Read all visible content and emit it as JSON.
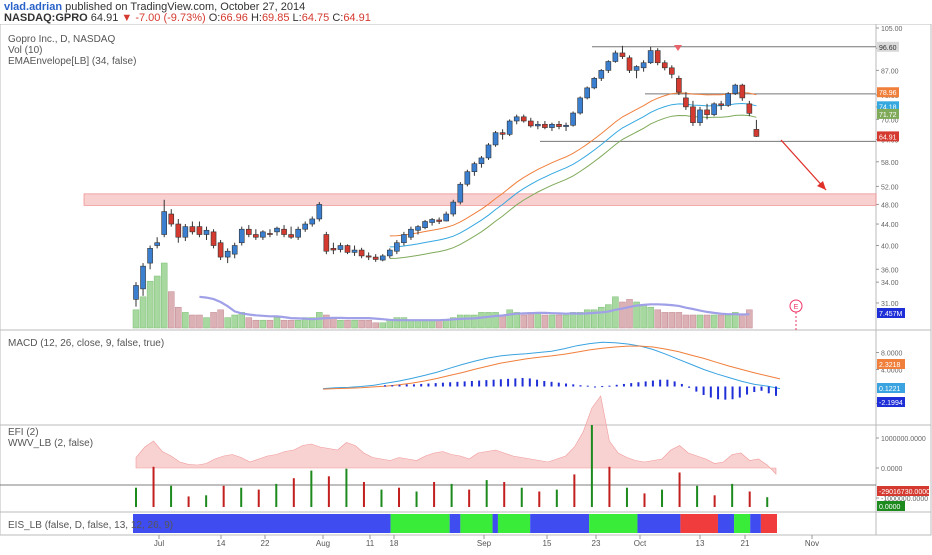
{
  "header": {
    "author": "vlad.adrian",
    "published": "published on TradingView.com, October 27, 2014",
    "symbol": "NASDAQ:GPRO",
    "last": "64.91",
    "change_arrow": "▼",
    "change": "-7.00 (-9.73%)",
    "o_label": "O:",
    "o": "66.96",
    "h_label": "H:",
    "h": "69.85",
    "l_label": "L:",
    "l": "64.75",
    "c_label": "C:",
    "c": "64.91"
  },
  "main_pane": {
    "title": "Gopro Inc., D, NASDAQ",
    "vol_label": "Vol (10)",
    "env_label": "EMAEnvelope[LB] (34, false)",
    "earnings_marker": "E",
    "volume_badge": "7.457M"
  },
  "macd_pane": {
    "label": "MACD (12, 26, close, 9, false, true)"
  },
  "efi_pane": {
    "label1": "EFI (2)",
    "label2": "WWV_LB (2, false)"
  },
  "eis_pane": {
    "label": "EIS_LB (false, D, false, 13, 12, 26, 9)"
  },
  "colors": {
    "up": "#3b7fd1",
    "down": "#d43a2f",
    "ema_upper": "#f07f3c",
    "ema_mid": "#35a8e0",
    "ema_lower": "#7faa5a",
    "zone": "#f4a9a9",
    "green": "#39ec39",
    "blue": "#3f4df0",
    "red": "#f03c3c"
  },
  "chart_data": [
    {
      "type": "candlestick",
      "title": "Gopro Inc., D, NASDAQ",
      "x_tick_labels": [
        "Jul",
        "14",
        "22",
        "Aug",
        "11",
        "18",
        "Sep",
        "15",
        "23",
        "Oct",
        "13",
        "21",
        "Nov"
      ],
      "y_tick_labels": [
        "31.00",
        "34.00",
        "36.00",
        "40.00",
        "44.00",
        "48.00",
        "52.00",
        "58.00",
        "64.00",
        "70.00",
        "74.00",
        "78.00",
        "87.00",
        "96.00",
        "105.00"
      ],
      "y_scale": "log",
      "ylim": [
        29,
        105
      ],
      "price_badges": [
        {
          "text": "96.60",
          "value": 96.6,
          "color": "#d9d9d9",
          "text_color": "#333"
        },
        {
          "text": "78.96",
          "value": 78.96,
          "color": "#f07f3c",
          "text_color": "#fff"
        },
        {
          "text": "74.18",
          "value": 74.18,
          "color": "#35a8e0",
          "text_color": "#fff"
        },
        {
          "text": "71.72",
          "value": 71.72,
          "color": "#7faa5a",
          "text_color": "#fff"
        },
        {
          "text": "64.91",
          "value": 64.91,
          "color": "#d43a2f",
          "text_color": "#fff"
        }
      ],
      "candles": [
        {
          "o": 31.5,
          "h": 34,
          "l": 30.5,
          "c": 33.5
        },
        {
          "o": 33,
          "h": 37,
          "l": 32,
          "c": 36.5
        },
        {
          "o": 37,
          "h": 40,
          "l": 36,
          "c": 39.5
        },
        {
          "o": 40,
          "h": 41.5,
          "l": 39.5,
          "c": 40.5
        },
        {
          "o": 42,
          "h": 49,
          "l": 41.5,
          "c": 46.5
        },
        {
          "o": 46,
          "h": 47,
          "l": 43.5,
          "c": 44
        },
        {
          "o": 44,
          "h": 45,
          "l": 40.5,
          "c": 41.5
        },
        {
          "o": 41.5,
          "h": 44,
          "l": 40.8,
          "c": 43.5
        },
        {
          "o": 43.5,
          "h": 44.5,
          "l": 42,
          "c": 42.5
        },
        {
          "o": 43.5,
          "h": 44.5,
          "l": 41.5,
          "c": 42
        },
        {
          "o": 42,
          "h": 43.5,
          "l": 41,
          "c": 42.8
        },
        {
          "o": 42.5,
          "h": 43,
          "l": 39.5,
          "c": 40
        },
        {
          "o": 40.5,
          "h": 41,
          "l": 37.5,
          "c": 38
        },
        {
          "o": 38,
          "h": 39.5,
          "l": 37,
          "c": 39
        },
        {
          "o": 38.5,
          "h": 40.5,
          "l": 37.8,
          "c": 40
        },
        {
          "o": 40.5,
          "h": 43.5,
          "l": 40,
          "c": 43
        },
        {
          "o": 43,
          "h": 43.8,
          "l": 41.5,
          "c": 42
        },
        {
          "o": 42,
          "h": 43,
          "l": 41,
          "c": 41.5
        },
        {
          "o": 41.5,
          "h": 42.8,
          "l": 41,
          "c": 42.5
        },
        {
          "o": 42.2,
          "h": 43,
          "l": 41.5,
          "c": 42
        },
        {
          "o": 42.5,
          "h": 43.5,
          "l": 41.8,
          "c": 43.2
        },
        {
          "o": 43,
          "h": 43.8,
          "l": 41.5,
          "c": 42
        },
        {
          "o": 42,
          "h": 43.5,
          "l": 41.2,
          "c": 41.5
        },
        {
          "o": 41.5,
          "h": 43.5,
          "l": 41,
          "c": 43
        },
        {
          "o": 43,
          "h": 44.5,
          "l": 42.5,
          "c": 44
        },
        {
          "o": 44,
          "h": 45.5,
          "l": 43.5,
          "c": 45
        },
        {
          "o": 45,
          "h": 48.5,
          "l": 44.5,
          "c": 48
        },
        {
          "o": 42,
          "h": 42.5,
          "l": 38.5,
          "c": 39
        },
        {
          "o": 39.5,
          "h": 40.5,
          "l": 38.5,
          "c": 39.2
        },
        {
          "o": 39.3,
          "h": 40.5,
          "l": 38.8,
          "c": 40
        },
        {
          "o": 40,
          "h": 40.2,
          "l": 38.5,
          "c": 38.8
        },
        {
          "o": 38.8,
          "h": 40,
          "l": 38.2,
          "c": 39.2
        },
        {
          "o": 39.2,
          "h": 39.6,
          "l": 37.8,
          "c": 38.2
        },
        {
          "o": 38.2,
          "h": 38.8,
          "l": 37.5,
          "c": 38
        },
        {
          "o": 38,
          "h": 38.5,
          "l": 37.2,
          "c": 37.6
        },
        {
          "o": 37.5,
          "h": 38.5,
          "l": 37.3,
          "c": 38.2
        },
        {
          "o": 38.2,
          "h": 39.5,
          "l": 37.8,
          "c": 39.2
        },
        {
          "o": 39,
          "h": 41,
          "l": 38.5,
          "c": 40.5
        },
        {
          "o": 40.5,
          "h": 42.5,
          "l": 40,
          "c": 42
        },
        {
          "o": 41.5,
          "h": 43.5,
          "l": 41,
          "c": 43
        },
        {
          "o": 42.8,
          "h": 43.8,
          "l": 42,
          "c": 43.5
        },
        {
          "o": 43.3,
          "h": 44.8,
          "l": 43,
          "c": 44.5
        },
        {
          "o": 44.3,
          "h": 45.2,
          "l": 43.7,
          "c": 44.9
        },
        {
          "o": 44.8,
          "h": 45.3,
          "l": 44,
          "c": 44.5
        },
        {
          "o": 44.6,
          "h": 46.5,
          "l": 44.5,
          "c": 46
        },
        {
          "o": 46,
          "h": 49,
          "l": 45.5,
          "c": 48.5
        },
        {
          "o": 48.5,
          "h": 53,
          "l": 48,
          "c": 52.5
        },
        {
          "o": 52.5,
          "h": 56,
          "l": 52,
          "c": 55.5
        },
        {
          "o": 55.5,
          "h": 58,
          "l": 54.5,
          "c": 57.5
        },
        {
          "o": 57.5,
          "h": 59.5,
          "l": 56.5,
          "c": 59
        },
        {
          "o": 59,
          "h": 63,
          "l": 58.5,
          "c": 62.5
        },
        {
          "o": 62.5,
          "h": 66.5,
          "l": 62,
          "c": 66
        },
        {
          "o": 66,
          "h": 67,
          "l": 64,
          "c": 65.5
        },
        {
          "o": 65.5,
          "h": 70,
          "l": 65,
          "c": 69.5
        },
        {
          "o": 69.5,
          "h": 71.5,
          "l": 68.5,
          "c": 70.8
        },
        {
          "o": 70.8,
          "h": 71.5,
          "l": 69,
          "c": 69.5
        },
        {
          "o": 69.5,
          "h": 70.5,
          "l": 67.5,
          "c": 68
        },
        {
          "o": 68,
          "h": 69.5,
          "l": 67,
          "c": 68.5
        },
        {
          "o": 68.5,
          "h": 69.5,
          "l": 67,
          "c": 67.5
        },
        {
          "o": 67.5,
          "h": 69,
          "l": 66.5,
          "c": 68.5
        },
        {
          "o": 68.5,
          "h": 69.5,
          "l": 67,
          "c": 67.8
        },
        {
          "o": 67.8,
          "h": 69,
          "l": 66.5,
          "c": 68.2
        },
        {
          "o": 68.2,
          "h": 72.5,
          "l": 67.8,
          "c": 72
        },
        {
          "o": 72,
          "h": 77.5,
          "l": 71.5,
          "c": 77
        },
        {
          "o": 77,
          "h": 81,
          "l": 76.5,
          "c": 80.5
        },
        {
          "o": 80.5,
          "h": 84.5,
          "l": 80,
          "c": 84
        },
        {
          "o": 84,
          "h": 87.5,
          "l": 83,
          "c": 87
        },
        {
          "o": 87,
          "h": 91,
          "l": 86,
          "c": 90.5
        },
        {
          "o": 90.5,
          "h": 95,
          "l": 90,
          "c": 94
        },
        {
          "o": 94,
          "h": 97,
          "l": 91.5,
          "c": 92.5
        },
        {
          "o": 92,
          "h": 93,
          "l": 86,
          "c": 87
        },
        {
          "o": 87,
          "h": 89,
          "l": 84,
          "c": 88.5
        },
        {
          "o": 88,
          "h": 91,
          "l": 86.5,
          "c": 90
        },
        {
          "o": 90,
          "h": 96.6,
          "l": 89.5,
          "c": 95
        },
        {
          "o": 95,
          "h": 96,
          "l": 89,
          "c": 90
        },
        {
          "o": 90,
          "h": 91,
          "l": 87,
          "c": 88
        },
        {
          "o": 88,
          "h": 89,
          "l": 84,
          "c": 85.5
        },
        {
          "o": 84,
          "h": 85,
          "l": 78,
          "c": 79
        },
        {
          "o": 77,
          "h": 79,
          "l": 73,
          "c": 74
        },
        {
          "o": 74,
          "h": 76,
          "l": 68,
          "c": 69
        },
        {
          "o": 69,
          "h": 74,
          "l": 68,
          "c": 73
        },
        {
          "o": 73,
          "h": 75,
          "l": 70,
          "c": 71.5
        },
        {
          "o": 71.5,
          "h": 75.5,
          "l": 71,
          "c": 75
        },
        {
          "o": 75,
          "h": 76,
          "l": 73,
          "c": 74.5
        },
        {
          "o": 74.5,
          "h": 79,
          "l": 74,
          "c": 78.5
        },
        {
          "o": 78.5,
          "h": 82,
          "l": 78,
          "c": 81.5
        },
        {
          "o": 81.5,
          "h": 82,
          "l": 76,
          "c": 77
        },
        {
          "o": 75,
          "h": 76,
          "l": 71,
          "c": 71.9
        },
        {
          "o": 66.96,
          "h": 69.85,
          "l": 64.75,
          "c": 64.91
        }
      ],
      "volume_ylim": [
        0,
        30
      ],
      "volume": [
        7,
        12,
        18,
        20,
        25,
        14,
        8,
        6,
        5,
        5,
        4,
        6,
        7,
        4,
        5,
        6,
        4,
        3,
        3,
        3,
        4,
        3,
        3,
        3,
        4,
        4,
        6,
        5,
        4,
        3,
        3,
        3,
        3,
        3,
        2,
        2,
        3,
        4,
        4,
        3,
        3,
        3,
        3,
        3,
        3,
        4,
        5,
        5,
        5,
        6,
        6,
        6,
        5,
        7,
        6,
        5,
        6,
        6,
        5,
        5,
        5,
        5,
        6,
        6,
        7,
        7,
        8,
        9,
        12,
        10,
        11,
        10,
        9,
        8,
        7,
        6,
        6,
        6,
        5,
        5,
        5,
        5,
        5,
        5,
        5,
        6,
        5,
        7
      ]
    },
    {
      "type": "line",
      "name": "MACD (12, 26, close, 9, false, true)",
      "y_tick_labels": [
        "8.0000",
        "4.0000",
        "-4.0000"
      ],
      "ylim": [
        -6,
        12
      ],
      "value_badges": [
        "2.3218",
        "0.1221",
        "-2.1994"
      ],
      "macd": [
        -0.5,
        -0.3,
        -0.2,
        0,
        0.3,
        0.8,
        1.3,
        1.9,
        2.6,
        3.4,
        4.3,
        5.2,
        6,
        6.7,
        7.2,
        7.5,
        7.7,
        8,
        8.3,
        8.9,
        9.6,
        10.1,
        10.4,
        10.3,
        10,
        9.5,
        8.7,
        7.6,
        6.4,
        5.2,
        4,
        3,
        2.1,
        1.2,
        0.5,
        0.1,
        -0.5
      ],
      "signal": [
        -0.6,
        -0.5,
        -0.4,
        -0.3,
        -0.1,
        0.1,
        0.4,
        0.8,
        1.3,
        1.9,
        2.6,
        3.3,
        4.1,
        4.8,
        5.5,
        6,
        6.5,
        6.9,
        7.2,
        7.6,
        8.1,
        8.6,
        9,
        9.3,
        9.5,
        9.5,
        9.3,
        8.8,
        8.2,
        7.4,
        6.6,
        5.7,
        4.8,
        4,
        3.2,
        2.5,
        1.8
      ],
      "histogram": [
        0.3,
        0.3,
        0.4,
        0.5,
        0.5,
        0.6,
        0.7,
        0.8,
        0.9,
        1.0,
        1.1,
        1.2,
        1.3,
        1.4,
        1.5,
        1.6,
        1.7,
        1.8,
        1.9,
        2.0,
        1.9,
        1.6,
        1.3,
        1.1,
        0.9,
        0.7,
        0.5,
        0.3,
        0.2,
        0,
        0.1,
        0.2,
        0.4,
        0.6,
        0.8,
        1.0,
        1.2,
        1.4,
        1.6,
        1.6,
        1.2,
        0.6,
        -0.3,
        -1.2,
        -2.0,
        -2.6,
        -3.0,
        -3.1,
        -3.0,
        -2.6,
        -1.9,
        -1.3,
        -1.0,
        -1.6,
        -2.2
      ]
    },
    {
      "type": "bar",
      "name": "EFI (2)",
      "y_tick_labels": [
        "1000000.0000",
        "0.0000",
        "-1000000.0000"
      ],
      "value_badges": [
        "-29016730.0000",
        "0.0000"
      ],
      "efi": [
        0.35,
        0.7,
        0.9,
        0.55,
        0.4,
        0.2,
        0.12,
        0.1,
        0.15,
        0.3,
        0.4,
        0.45,
        0.35,
        0.2,
        0.3,
        0.4,
        0.45,
        0.55,
        0.6,
        0.75,
        0.8,
        0.7,
        0.65,
        0.6,
        0.85,
        0.75,
        0.5,
        0.35,
        0.3,
        0.25,
        0.35,
        0.3,
        0.25,
        0.4,
        0.5,
        0.55,
        0.45,
        0.4,
        0.3,
        0.5,
        0.55,
        0.6,
        0.5,
        0.4,
        0.35,
        0.3,
        0.25,
        0.2,
        0.3,
        0.4,
        0.7,
        1.2,
        2.0,
        2.4,
        0.9,
        0.5,
        0.35,
        0.25,
        0.2,
        0.25,
        0.3,
        0.6,
        0.75,
        0.5,
        0.4,
        0.3,
        0.15,
        0.2,
        0.45,
        0.5,
        0.25,
        0.3,
        0.1,
        -0.2
      ]
    },
    {
      "type": "heatmap",
      "name": "EIS_LB (false, D, false, 13, 12, 26, 9)",
      "segments": [
        {
          "color": "blue",
          "span": 48
        },
        {
          "color": "green",
          "span": 11
        },
        {
          "color": "blue",
          "span": 2
        },
        {
          "color": "green",
          "span": 6
        },
        {
          "color": "blue",
          "span": 1
        },
        {
          "color": "green",
          "span": 6
        },
        {
          "color": "blue",
          "span": 11
        },
        {
          "color": "green",
          "span": 9
        },
        {
          "color": "blue",
          "span": 8
        },
        {
          "color": "red",
          "span": 7
        },
        {
          "color": "blue",
          "span": 3
        },
        {
          "color": "green",
          "span": 3
        },
        {
          "color": "blue",
          "span": 2
        },
        {
          "color": "red",
          "span": 3
        }
      ]
    }
  ]
}
